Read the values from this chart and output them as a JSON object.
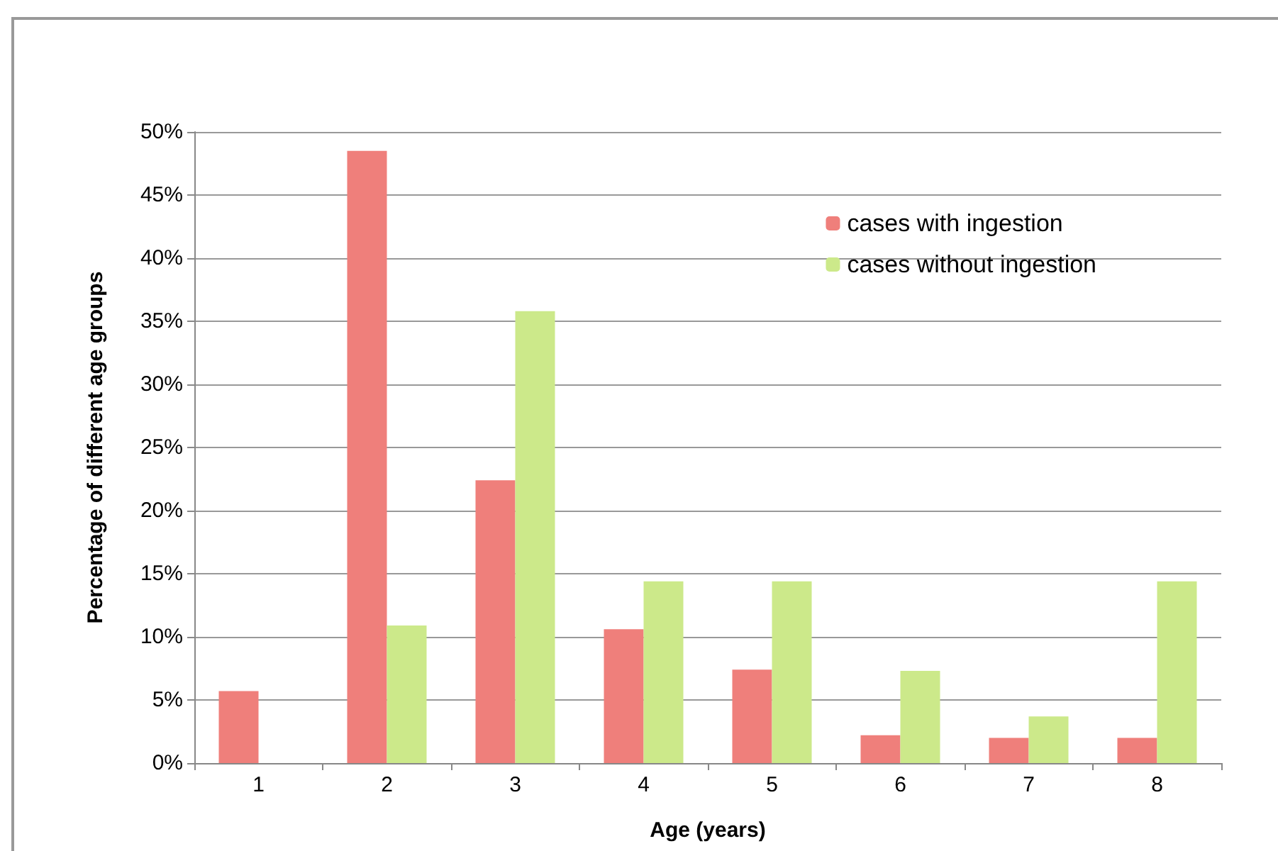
{
  "chart_data": {
    "type": "bar",
    "xlabel": "Age (years)",
    "ylabel": "Percentage of different age groups",
    "categories": [
      "1",
      "2",
      "3",
      "4",
      "5",
      "6",
      "7",
      "8"
    ],
    "series": [
      {
        "name": "cases with ingestion",
        "color": "#ef7f7b",
        "values": [
          5.7,
          48.5,
          22.4,
          10.6,
          7.4,
          2.2,
          2.0,
          2.0
        ]
      },
      {
        "name": "cases without ingestion",
        "color": "#cce98a",
        "values": [
          null,
          10.9,
          35.8,
          14.4,
          14.4,
          7.3,
          3.7,
          14.4
        ]
      }
    ],
    "ylim": [
      0,
      50
    ],
    "yticks": [
      {
        "value": 0,
        "label": "0%"
      },
      {
        "value": 5,
        "label": "5%"
      },
      {
        "value": 10,
        "label": "10%"
      },
      {
        "value": 15,
        "label": "15%"
      },
      {
        "value": 20,
        "label": "20%"
      },
      {
        "value": 25,
        "label": "25%"
      },
      {
        "value": 30,
        "label": "30%"
      },
      {
        "value": 35,
        "label": "35%"
      },
      {
        "value": 40,
        "label": "40%"
      },
      {
        "value": 45,
        "label": "45%"
      },
      {
        "value": 50,
        "label": "50%"
      }
    ],
    "grid": "y",
    "legend": "top right"
  }
}
